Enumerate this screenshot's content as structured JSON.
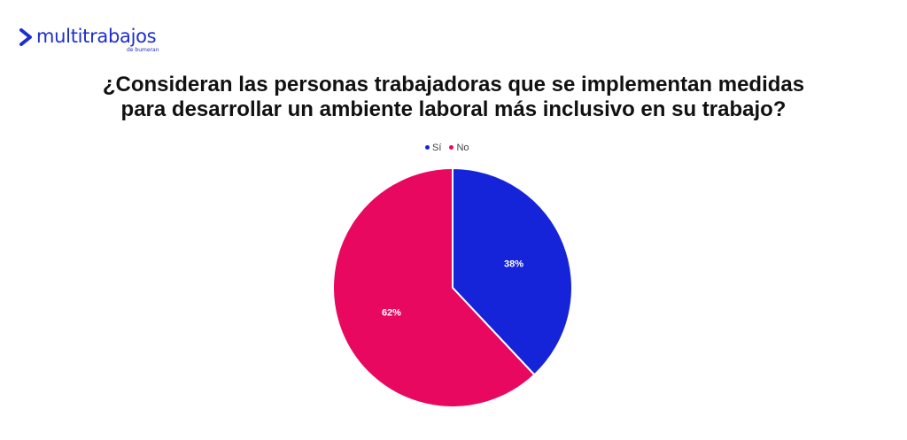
{
  "logo": {
    "name": "multitrabajos",
    "sub": "de bumeran",
    "color": "#1d2ecf"
  },
  "title_lines": [
    "¿Consideran las personas trabajadoras que se implementan medidas",
    "para desarrollar un ambiente laboral más inclusivo en su trabajo?"
  ],
  "chart_data": {
    "type": "pie",
    "title": "¿Consideran las personas trabajadoras que se implementan medidas para desarrollar un ambiente laboral más inclusivo en su trabajo?",
    "legend_position": "top",
    "slices": [
      {
        "label": "Sí",
        "value": 38,
        "display": "38%",
        "color": "#1524d9"
      },
      {
        "label": "No",
        "value": 62,
        "display": "62%",
        "color": "#e8085f"
      }
    ]
  }
}
